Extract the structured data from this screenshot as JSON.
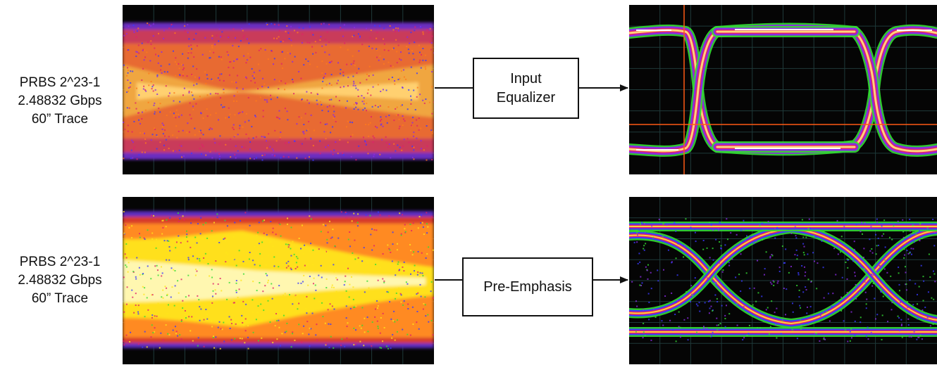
{
  "rows": [
    {
      "input_label": [
        "PRBS 2^23-1",
        "2.48832 Gbps",
        "60” Trace"
      ],
      "block_label": [
        "Input",
        "Equalizer"
      ]
    },
    {
      "input_label": [
        "PRBS 2^23-1",
        "2.48832 Gbps",
        "60” Trace"
      ],
      "block_label": [
        "Pre-Emphasis"
      ]
    }
  ],
  "colors": {
    "screen": "#050505",
    "grid": "#1f3a3a",
    "cursor": "#ff5a14",
    "heat": [
      "#ffffff",
      "#ffe51a",
      "#ff7a1a",
      "#e0206a",
      "#8a2be2",
      "#3a3aff",
      "#33dd33"
    ]
  }
}
